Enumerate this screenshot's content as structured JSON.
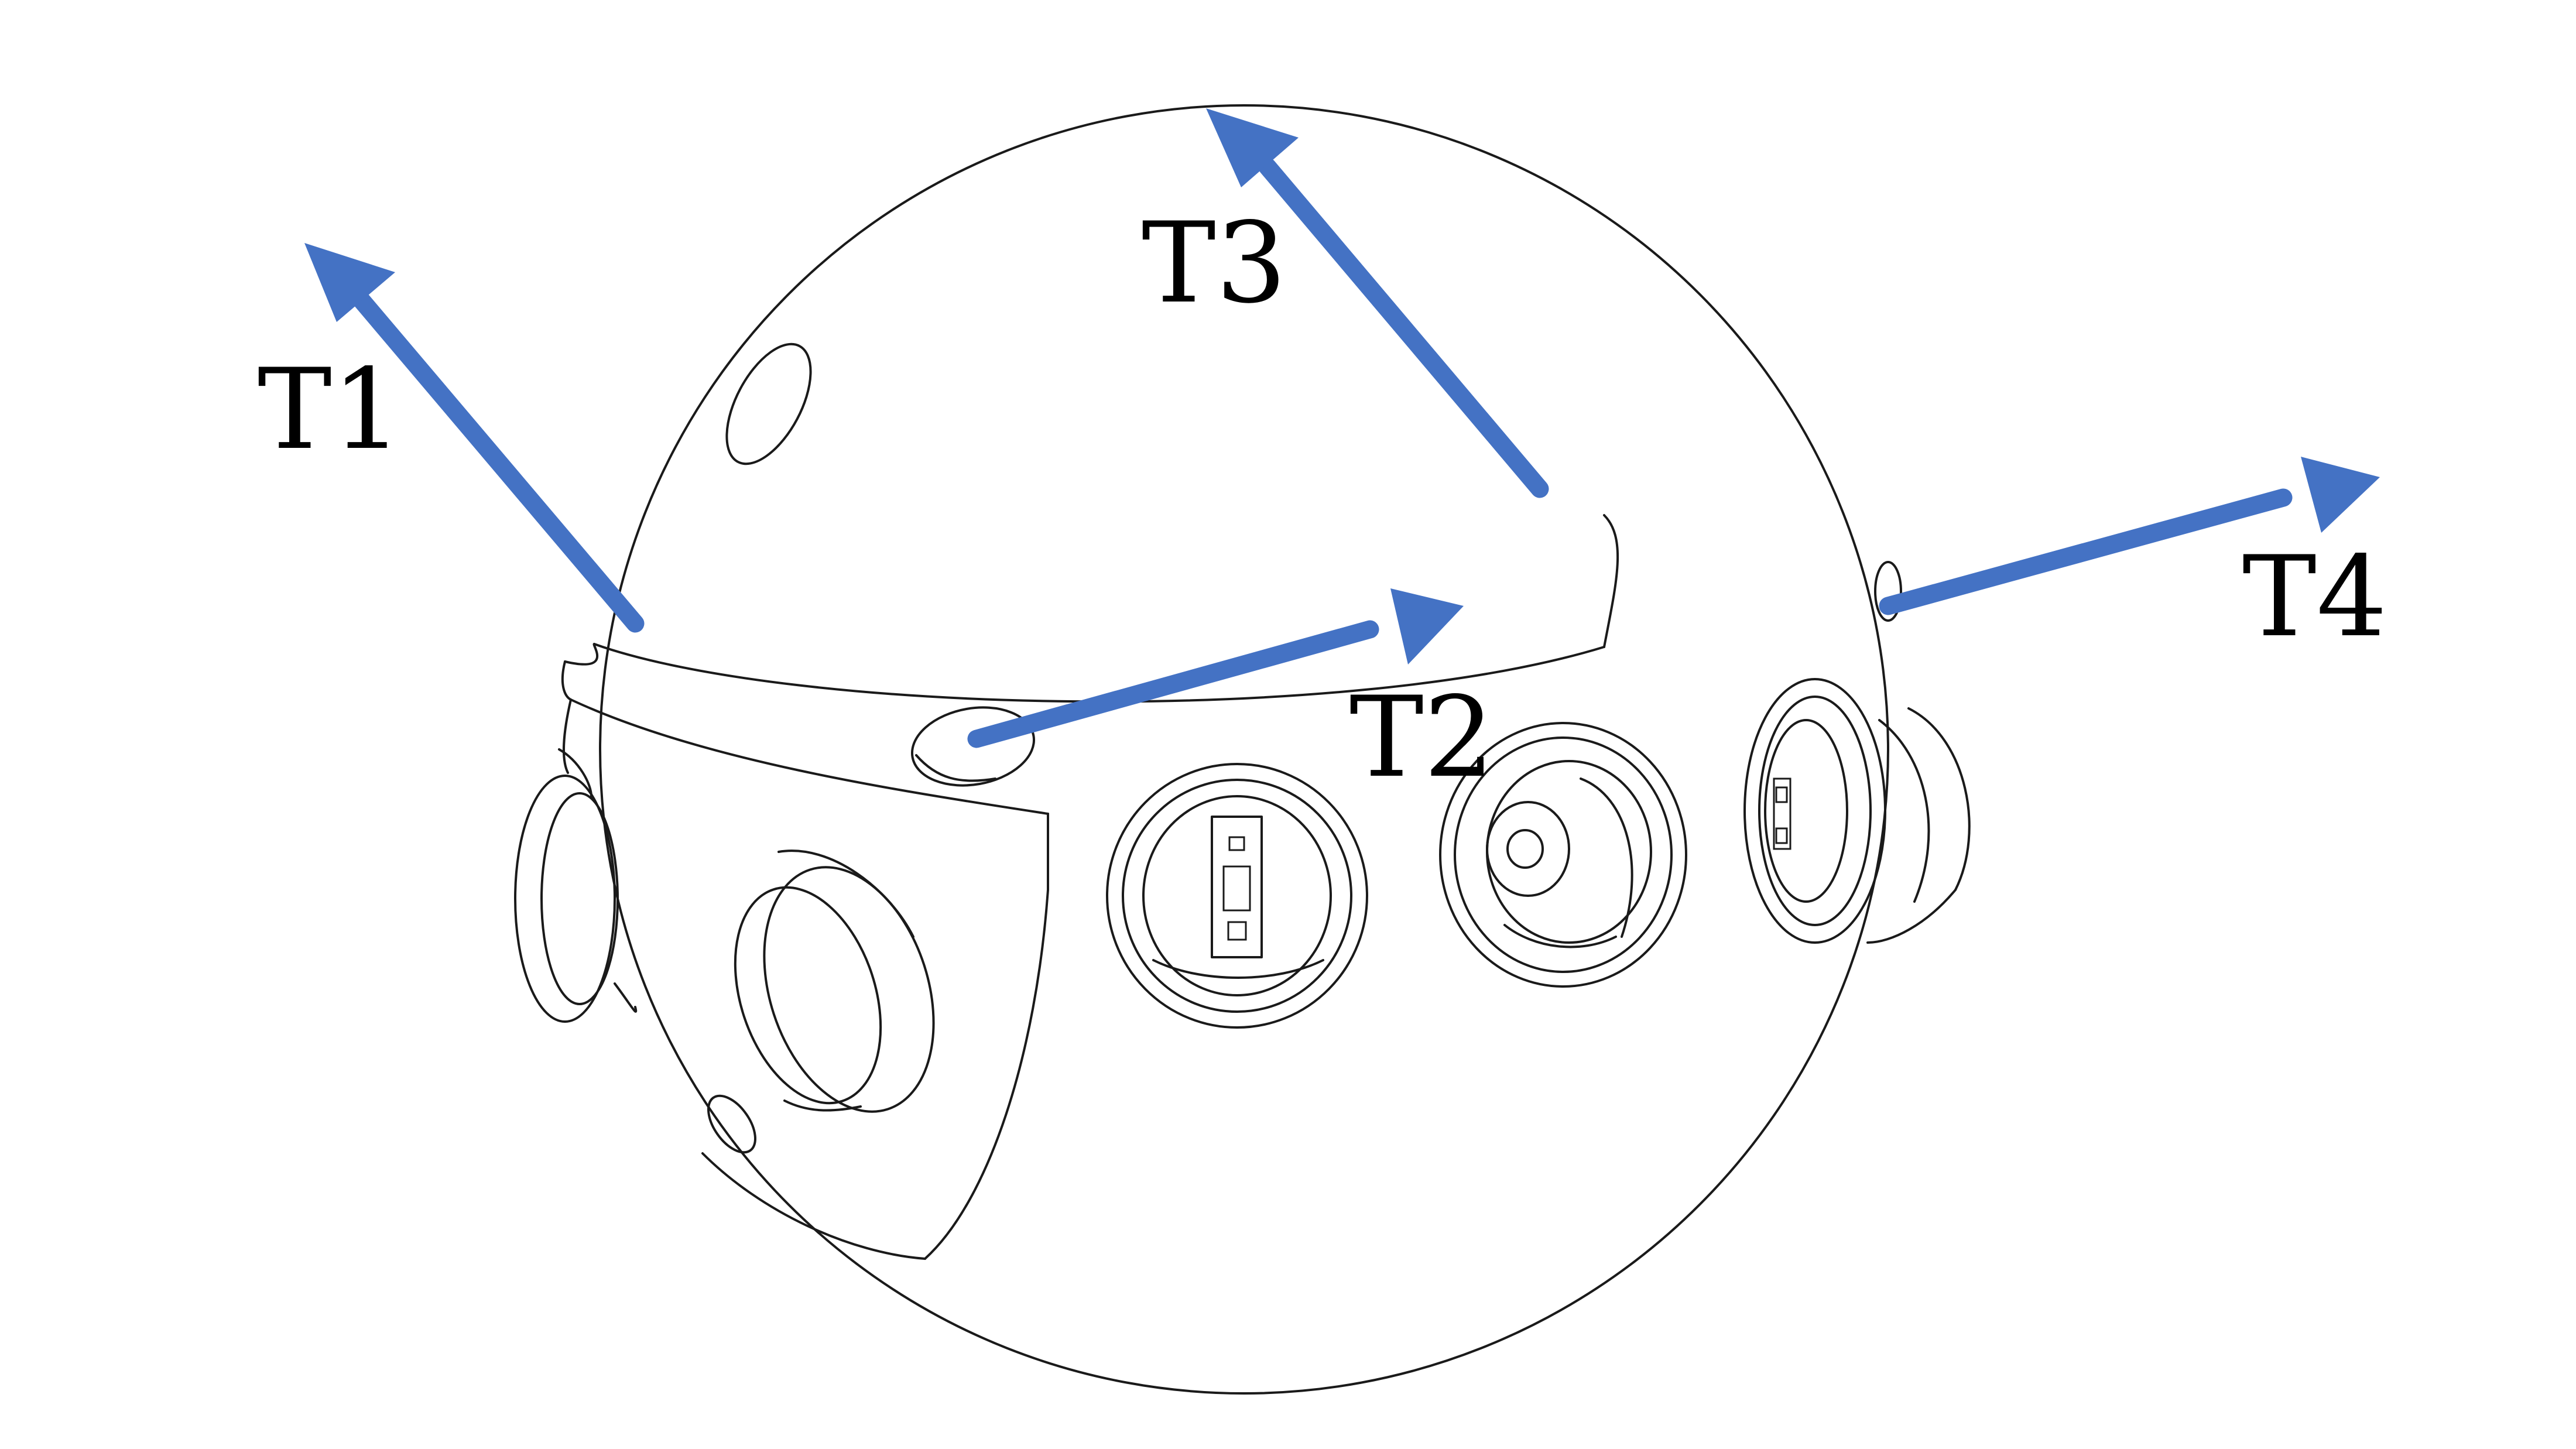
{
  "figure": {
    "arrow_color": "#4472C4",
    "line_color": "#1a1a1a",
    "background": "#ffffff",
    "labels": {
      "t1": "T1",
      "t2": "T2",
      "t3": "T3",
      "t4": "T4"
    }
  }
}
